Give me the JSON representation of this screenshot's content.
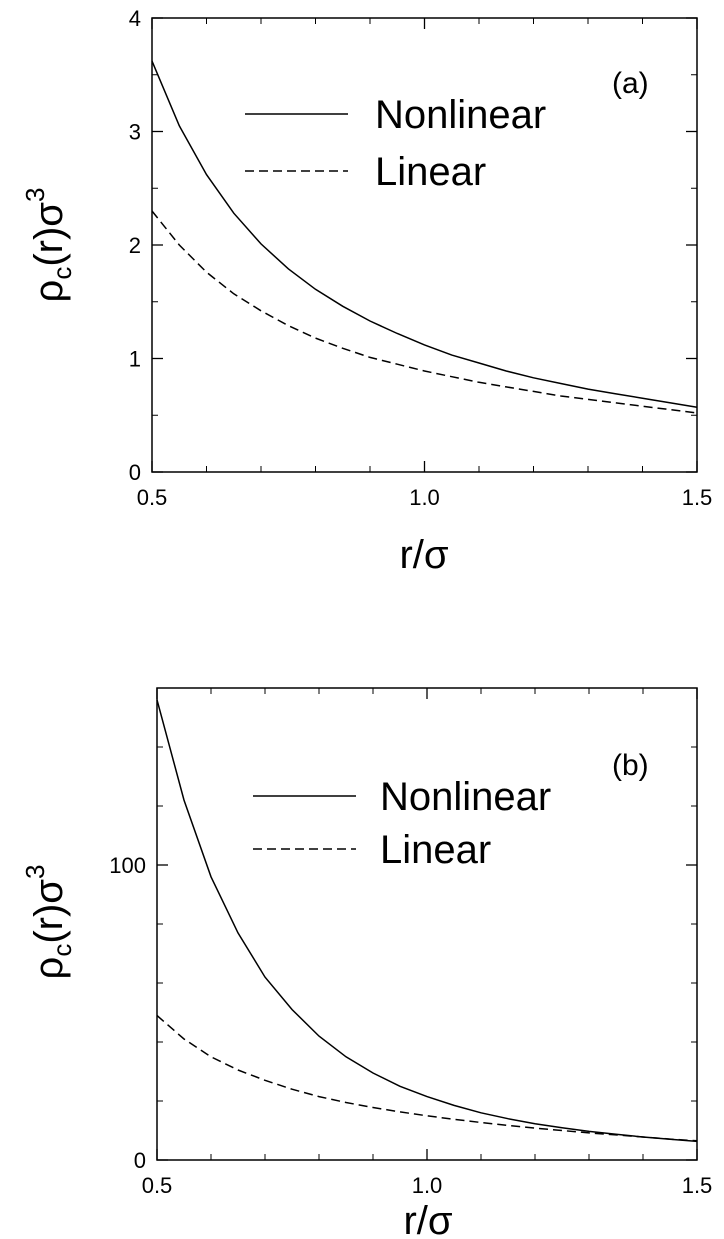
{
  "chart_data": [
    {
      "type": "line",
      "panel_label": "(a)",
      "xlabel": "r/σ",
      "ylabel": {
        "base": "ρ",
        "sub": "c",
        "rest": "(r)σ",
        "sup": "3"
      },
      "xlim": [
        0.5,
        1.5
      ],
      "ylim": [
        0,
        4
      ],
      "xticks": [
        {
          "v": 0.5,
          "label": "0.5"
        },
        {
          "v": 1.0,
          "label": "1.0"
        },
        {
          "v": 1.5,
          "label": "1.5"
        }
      ],
      "yticks": [
        {
          "v": 0,
          "label": "0"
        },
        {
          "v": 1,
          "label": "1"
        },
        {
          "v": 2,
          "label": "2"
        },
        {
          "v": 3,
          "label": "3"
        },
        {
          "v": 4,
          "label": "4"
        }
      ],
      "xminor": [
        0.6,
        0.7,
        0.8,
        0.9,
        1.1,
        1.2,
        1.3,
        1.4
      ],
      "yminor": [
        0.5,
        1.5,
        2.5,
        3.5
      ],
      "legend_position": "top-right",
      "series": [
        {
          "name": "Nonlinear",
          "style": "solid",
          "x": [
            0.5,
            0.55,
            0.6,
            0.65,
            0.7,
            0.75,
            0.8,
            0.85,
            0.9,
            0.95,
            1.0,
            1.05,
            1.1,
            1.15,
            1.2,
            1.25,
            1.3,
            1.35,
            1.4,
            1.45,
            1.5
          ],
          "y": [
            3.62,
            3.05,
            2.62,
            2.28,
            2.01,
            1.79,
            1.61,
            1.46,
            1.33,
            1.22,
            1.12,
            1.03,
            0.96,
            0.89,
            0.83,
            0.78,
            0.73,
            0.69,
            0.65,
            0.61,
            0.57
          ]
        },
        {
          "name": "Linear",
          "style": "dashed",
          "x": [
            0.5,
            0.55,
            0.6,
            0.65,
            0.7,
            0.75,
            0.8,
            0.85,
            0.9,
            0.95,
            1.0,
            1.05,
            1.1,
            1.15,
            1.2,
            1.25,
            1.3,
            1.35,
            1.4,
            1.45,
            1.5
          ],
          "y": [
            2.3,
            2.0,
            1.76,
            1.57,
            1.42,
            1.29,
            1.18,
            1.09,
            1.01,
            0.95,
            0.89,
            0.84,
            0.79,
            0.75,
            0.71,
            0.67,
            0.64,
            0.61,
            0.58,
            0.55,
            0.52
          ]
        }
      ]
    },
    {
      "type": "line",
      "panel_label": "(b)",
      "xlabel": "r/σ",
      "ylabel": {
        "base": "ρ",
        "sub": "c",
        "rest": "(r)σ",
        "sup": "3"
      },
      "xlim": [
        0.5,
        1.5
      ],
      "ylim": [
        0,
        160
      ],
      "xticks": [
        {
          "v": 0.5,
          "label": "0.5"
        },
        {
          "v": 1.0,
          "label": "1.0"
        },
        {
          "v": 1.5,
          "label": "1.5"
        }
      ],
      "yticks": [
        {
          "v": 0,
          "label": "0"
        },
        {
          "v": 100,
          "label": "100"
        }
      ],
      "xminor": [
        0.6,
        0.7,
        0.8,
        0.9,
        1.1,
        1.2,
        1.3,
        1.4
      ],
      "yminor": [
        20,
        40,
        60,
        80,
        120,
        140
      ],
      "legend_position": "top-right",
      "series": [
        {
          "name": "Nonlinear",
          "style": "solid",
          "x": [
            0.5,
            0.55,
            0.6,
            0.65,
            0.7,
            0.75,
            0.8,
            0.85,
            0.9,
            0.95,
            1.0,
            1.05,
            1.1,
            1.15,
            1.2,
            1.25,
            1.3,
            1.35,
            1.4,
            1.45,
            1.5
          ],
          "y": [
            156,
            122,
            96,
            77,
            62,
            51,
            42,
            35,
            29.5,
            25,
            21.5,
            18.5,
            16,
            14,
            12.3,
            10.9,
            9.7,
            8.7,
            7.8,
            7.0,
            6.3
          ]
        },
        {
          "name": "Linear",
          "style": "dashed",
          "x": [
            0.5,
            0.55,
            0.6,
            0.65,
            0.7,
            0.75,
            0.8,
            0.85,
            0.9,
            0.95,
            1.0,
            1.05,
            1.1,
            1.15,
            1.2,
            1.25,
            1.3,
            1.35,
            1.4,
            1.45,
            1.5
          ],
          "y": [
            49,
            41,
            35,
            30.5,
            27,
            24,
            21.5,
            19.5,
            17.8,
            16.3,
            15,
            13.8,
            12.7,
            11.7,
            10.8,
            10,
            9.2,
            8.5,
            7.8,
            7.1,
            6.5
          ]
        }
      ]
    }
  ]
}
